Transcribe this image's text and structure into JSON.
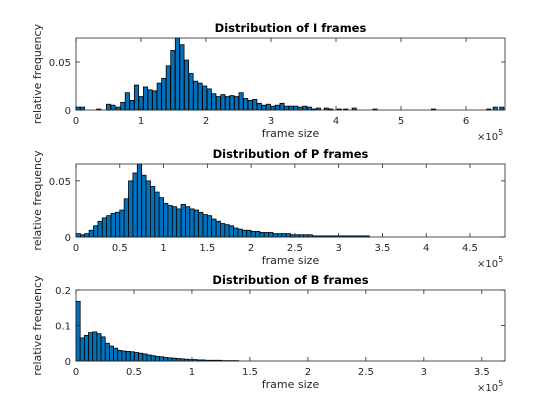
{
  "figure": {
    "background": "#ffffff",
    "bar_color": "#0072bd",
    "edge_color": "#000000"
  },
  "chart_data": [
    {
      "type": "bar",
      "title": "Distribution of I frames",
      "xlabel": "frame size",
      "ylabel": "relative frequency",
      "x_exponent_label": "10",
      "x_exponent_power": "5",
      "xlim": [
        0,
        6.6
      ],
      "ylim": [
        0,
        0.075
      ],
      "xticks": [
        0,
        1,
        2,
        3,
        4,
        5,
        6
      ],
      "xtick_labels": [
        "0",
        "1",
        "2",
        "3",
        "4",
        "5",
        "6"
      ],
      "yticks": [
        0,
        0.05
      ],
      "ytick_labels": [
        "0",
        "0.05"
      ],
      "bin_width": 0.065,
      "bins": [
        {
          "x": 0.03,
          "y": 0.003
        },
        {
          "x": 0.1,
          "y": 0.003
        },
        {
          "x": 0.35,
          "y": 0.001
        },
        {
          "x": 0.5,
          "y": 0.006
        },
        {
          "x": 0.57,
          "y": 0.005
        },
        {
          "x": 0.65,
          "y": 0.003
        },
        {
          "x": 0.72,
          "y": 0.008
        },
        {
          "x": 0.79,
          "y": 0.018
        },
        {
          "x": 0.86,
          "y": 0.01
        },
        {
          "x": 0.93,
          "y": 0.026
        },
        {
          "x": 1.0,
          "y": 0.014
        },
        {
          "x": 1.07,
          "y": 0.024
        },
        {
          "x": 1.14,
          "y": 0.021
        },
        {
          "x": 1.21,
          "y": 0.02
        },
        {
          "x": 1.28,
          "y": 0.028
        },
        {
          "x": 1.35,
          "y": 0.033
        },
        {
          "x": 1.42,
          "y": 0.046
        },
        {
          "x": 1.49,
          "y": 0.062
        },
        {
          "x": 1.56,
          "y": 0.075
        },
        {
          "x": 1.63,
          "y": 0.068
        },
        {
          "x": 1.7,
          "y": 0.052
        },
        {
          "x": 1.77,
          "y": 0.038
        },
        {
          "x": 1.84,
          "y": 0.03
        },
        {
          "x": 1.91,
          "y": 0.028
        },
        {
          "x": 1.98,
          "y": 0.025
        },
        {
          "x": 2.05,
          "y": 0.022
        },
        {
          "x": 2.12,
          "y": 0.017
        },
        {
          "x": 2.19,
          "y": 0.014
        },
        {
          "x": 2.26,
          "y": 0.016
        },
        {
          "x": 2.33,
          "y": 0.014
        },
        {
          "x": 2.4,
          "y": 0.015
        },
        {
          "x": 2.47,
          "y": 0.014
        },
        {
          "x": 2.54,
          "y": 0.018
        },
        {
          "x": 2.61,
          "y": 0.012
        },
        {
          "x": 2.68,
          "y": 0.01
        },
        {
          "x": 2.75,
          "y": 0.011
        },
        {
          "x": 2.82,
          "y": 0.007
        },
        {
          "x": 2.89,
          "y": 0.005
        },
        {
          "x": 2.96,
          "y": 0.006
        },
        {
          "x": 3.03,
          "y": 0.004
        },
        {
          "x": 3.1,
          "y": 0.005
        },
        {
          "x": 3.17,
          "y": 0.007
        },
        {
          "x": 3.24,
          "y": 0.004
        },
        {
          "x": 3.31,
          "y": 0.004
        },
        {
          "x": 3.38,
          "y": 0.004
        },
        {
          "x": 3.45,
          "y": 0.003
        },
        {
          "x": 3.52,
          "y": 0.004
        },
        {
          "x": 3.59,
          "y": 0.003
        },
        {
          "x": 3.66,
          "y": 0.001
        },
        {
          "x": 3.73,
          "y": 0.002
        },
        {
          "x": 3.85,
          "y": 0.002
        },
        {
          "x": 3.92,
          "y": 0.001
        },
        {
          "x": 4.05,
          "y": 0.001
        },
        {
          "x": 4.15,
          "y": 0.001
        },
        {
          "x": 4.28,
          "y": 0.002
        },
        {
          "x": 4.6,
          "y": 0.001
        },
        {
          "x": 5.5,
          "y": 0.001
        },
        {
          "x": 6.35,
          "y": 0.001
        },
        {
          "x": 6.45,
          "y": 0.003
        },
        {
          "x": 6.55,
          "y": 0.003
        }
      ]
    },
    {
      "type": "bar",
      "title": "Distribution of P frames",
      "xlabel": "frame size",
      "ylabel": "relative frequency",
      "x_exponent_label": "10",
      "x_exponent_power": "5",
      "xlim": [
        0,
        4.9
      ],
      "ylim": [
        0,
        0.065
      ],
      "xticks": [
        0,
        0.5,
        1,
        1.5,
        2,
        2.5,
        3,
        3.5,
        4,
        4.5
      ],
      "xtick_labels": [
        "0",
        "0.5",
        "1",
        "1.5",
        "2",
        "2.5",
        "3",
        "3.5",
        "4",
        "4.5"
      ],
      "yticks": [
        0,
        0.05
      ],
      "ytick_labels": [
        "0",
        "0.05"
      ],
      "bin_width": 0.05,
      "bins": [
        {
          "x": 0.025,
          "y": 0.003
        },
        {
          "x": 0.075,
          "y": 0.002
        },
        {
          "x": 0.125,
          "y": 0.003
        },
        {
          "x": 0.175,
          "y": 0.006
        },
        {
          "x": 0.225,
          "y": 0.01
        },
        {
          "x": 0.275,
          "y": 0.014
        },
        {
          "x": 0.325,
          "y": 0.017
        },
        {
          "x": 0.375,
          "y": 0.019
        },
        {
          "x": 0.425,
          "y": 0.021
        },
        {
          "x": 0.475,
          "y": 0.022
        },
        {
          "x": 0.525,
          "y": 0.024
        },
        {
          "x": 0.575,
          "y": 0.034
        },
        {
          "x": 0.625,
          "y": 0.05
        },
        {
          "x": 0.675,
          "y": 0.057
        },
        {
          "x": 0.725,
          "y": 0.065
        },
        {
          "x": 0.775,
          "y": 0.055
        },
        {
          "x": 0.825,
          "y": 0.05
        },
        {
          "x": 0.875,
          "y": 0.045
        },
        {
          "x": 0.925,
          "y": 0.04
        },
        {
          "x": 0.975,
          "y": 0.035
        },
        {
          "x": 1.025,
          "y": 0.03
        },
        {
          "x": 1.075,
          "y": 0.028
        },
        {
          "x": 1.125,
          "y": 0.027
        },
        {
          "x": 1.175,
          "y": 0.025
        },
        {
          "x": 1.225,
          "y": 0.029
        },
        {
          "x": 1.275,
          "y": 0.027
        },
        {
          "x": 1.325,
          "y": 0.025
        },
        {
          "x": 1.375,
          "y": 0.024
        },
        {
          "x": 1.425,
          "y": 0.022
        },
        {
          "x": 1.475,
          "y": 0.02
        },
        {
          "x": 1.525,
          "y": 0.019
        },
        {
          "x": 1.575,
          "y": 0.016
        },
        {
          "x": 1.625,
          "y": 0.014
        },
        {
          "x": 1.675,
          "y": 0.012
        },
        {
          "x": 1.725,
          "y": 0.011
        },
        {
          "x": 1.775,
          "y": 0.01
        },
        {
          "x": 1.825,
          "y": 0.008
        },
        {
          "x": 1.875,
          "y": 0.007
        },
        {
          "x": 1.925,
          "y": 0.006
        },
        {
          "x": 1.975,
          "y": 0.006
        },
        {
          "x": 2.025,
          "y": 0.005
        },
        {
          "x": 2.075,
          "y": 0.005
        },
        {
          "x": 2.125,
          "y": 0.004
        },
        {
          "x": 2.175,
          "y": 0.004
        },
        {
          "x": 2.225,
          "y": 0.004
        },
        {
          "x": 2.275,
          "y": 0.003
        },
        {
          "x": 2.325,
          "y": 0.003
        },
        {
          "x": 2.375,
          "y": 0.003
        },
        {
          "x": 2.425,
          "y": 0.003
        },
        {
          "x": 2.475,
          "y": 0.002
        },
        {
          "x": 2.525,
          "y": 0.002
        },
        {
          "x": 2.575,
          "y": 0.002
        },
        {
          "x": 2.625,
          "y": 0.002
        },
        {
          "x": 2.675,
          "y": 0.002
        },
        {
          "x": 2.725,
          "y": 0.001
        },
        {
          "x": 2.775,
          "y": 0.001
        },
        {
          "x": 2.825,
          "y": 0.001
        },
        {
          "x": 2.875,
          "y": 0.001
        },
        {
          "x": 2.925,
          "y": 0.001
        },
        {
          "x": 2.975,
          "y": 0.001
        },
        {
          "x": 3.025,
          "y": 0.001
        },
        {
          "x": 3.075,
          "y": 0.001
        },
        {
          "x": 3.125,
          "y": 0.001
        },
        {
          "x": 3.175,
          "y": 0.001
        },
        {
          "x": 3.225,
          "y": 0.001
        },
        {
          "x": 3.275,
          "y": 0.001
        },
        {
          "x": 3.325,
          "y": 0.001
        }
      ]
    },
    {
      "type": "bar",
      "title": "Distribution of B frames",
      "xlabel": "frame size",
      "ylabel": "relative frequency",
      "x_exponent_label": "10",
      "x_exponent_power": "5",
      "xlim": [
        0,
        3.7
      ],
      "ylim": [
        0,
        0.2
      ],
      "xticks": [
        0,
        0.5,
        1,
        1.5,
        2,
        2.5,
        3,
        3.5
      ],
      "xtick_labels": [
        "0",
        "0.5",
        "1",
        "1.5",
        "2",
        "2.5",
        "3",
        "3.5"
      ],
      "yticks": [
        0,
        0.1,
        0.2
      ],
      "ytick_labels": [
        "0",
        "0.1",
        "0.2"
      ],
      "bin_width": 0.036,
      "bins": [
        {
          "x": 0.018,
          "y": 0.168
        },
        {
          "x": 0.054,
          "y": 0.065
        },
        {
          "x": 0.09,
          "y": 0.072
        },
        {
          "x": 0.126,
          "y": 0.08
        },
        {
          "x": 0.162,
          "y": 0.082
        },
        {
          "x": 0.198,
          "y": 0.077
        },
        {
          "x": 0.234,
          "y": 0.068
        },
        {
          "x": 0.27,
          "y": 0.05
        },
        {
          "x": 0.306,
          "y": 0.042
        },
        {
          "x": 0.342,
          "y": 0.036
        },
        {
          "x": 0.378,
          "y": 0.03
        },
        {
          "x": 0.414,
          "y": 0.028
        },
        {
          "x": 0.45,
          "y": 0.027
        },
        {
          "x": 0.486,
          "y": 0.026
        },
        {
          "x": 0.522,
          "y": 0.024
        },
        {
          "x": 0.558,
          "y": 0.022
        },
        {
          "x": 0.594,
          "y": 0.02
        },
        {
          "x": 0.63,
          "y": 0.017
        },
        {
          "x": 0.666,
          "y": 0.015
        },
        {
          "x": 0.702,
          "y": 0.013
        },
        {
          "x": 0.738,
          "y": 0.012
        },
        {
          "x": 0.774,
          "y": 0.01
        },
        {
          "x": 0.81,
          "y": 0.009
        },
        {
          "x": 0.846,
          "y": 0.008
        },
        {
          "x": 0.882,
          "y": 0.007
        },
        {
          "x": 0.918,
          "y": 0.006
        },
        {
          "x": 0.954,
          "y": 0.005
        },
        {
          "x": 0.99,
          "y": 0.004
        },
        {
          "x": 1.026,
          "y": 0.004
        },
        {
          "x": 1.062,
          "y": 0.003
        },
        {
          "x": 1.098,
          "y": 0.003
        },
        {
          "x": 1.134,
          "y": 0.002
        },
        {
          "x": 1.17,
          "y": 0.002
        },
        {
          "x": 1.206,
          "y": 0.002
        },
        {
          "x": 1.242,
          "y": 0.002
        },
        {
          "x": 1.278,
          "y": 0.001
        },
        {
          "x": 1.314,
          "y": 0.001
        },
        {
          "x": 1.35,
          "y": 0.001
        },
        {
          "x": 1.386,
          "y": 0.001
        }
      ]
    }
  ]
}
